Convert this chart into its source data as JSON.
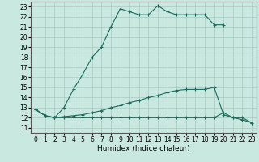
{
  "xlabel": "Humidex (Indice chaleur)",
  "background_color": "#c8e8e0",
  "grid_color": "#a8c8c0",
  "line_color": "#1a6b5a",
  "xlim": [
    -0.5,
    23.5
  ],
  "ylim": [
    10.5,
    23.5
  ],
  "xticks": [
    0,
    1,
    2,
    3,
    4,
    5,
    6,
    7,
    8,
    9,
    10,
    11,
    12,
    13,
    14,
    15,
    16,
    17,
    18,
    19,
    20,
    21,
    22,
    23
  ],
  "yticks": [
    11,
    12,
    13,
    14,
    15,
    16,
    17,
    18,
    19,
    20,
    21,
    22,
    23
  ],
  "line1_x": [
    0,
    1,
    2,
    3,
    4,
    5,
    6,
    7,
    8,
    9,
    10,
    11,
    12,
    13,
    14,
    15,
    16,
    17,
    18,
    19,
    20
  ],
  "line1_y": [
    12.8,
    12.2,
    12.0,
    13.0,
    14.8,
    16.3,
    18.0,
    19.0,
    21.0,
    22.8,
    22.5,
    22.2,
    22.2,
    23.1,
    22.5,
    22.2,
    22.2,
    22.2,
    22.2,
    21.2,
    21.2
  ],
  "line2_x": [
    0,
    1,
    2,
    3,
    4,
    5,
    6,
    7,
    8,
    9,
    10,
    11,
    12,
    13,
    14,
    15,
    16,
    17,
    18,
    19,
    20,
    21,
    22,
    23
  ],
  "line2_y": [
    12.8,
    12.2,
    12.0,
    12.0,
    12.0,
    12.0,
    12.0,
    12.0,
    12.0,
    12.0,
    12.0,
    12.0,
    12.0,
    12.0,
    12.0,
    12.0,
    12.0,
    12.0,
    12.0,
    12.0,
    12.5,
    12.0,
    12.0,
    11.5
  ],
  "line3_x": [
    0,
    1,
    2,
    3,
    4,
    5,
    6,
    7,
    8,
    9,
    10,
    11,
    12,
    13,
    14,
    15,
    16,
    17,
    18,
    19,
    20,
    21,
    22,
    23
  ],
  "line3_y": [
    12.8,
    12.2,
    12.0,
    12.1,
    12.2,
    12.3,
    12.5,
    12.7,
    13.0,
    13.2,
    13.5,
    13.7,
    14.0,
    14.2,
    14.5,
    14.7,
    14.8,
    14.8,
    14.8,
    15.0,
    12.3,
    12.0,
    11.8,
    11.5
  ],
  "marker": "+",
  "markersize": 3,
  "linewidth": 0.8,
  "tick_fontsize": 5.5,
  "xlabel_fontsize": 6.5
}
